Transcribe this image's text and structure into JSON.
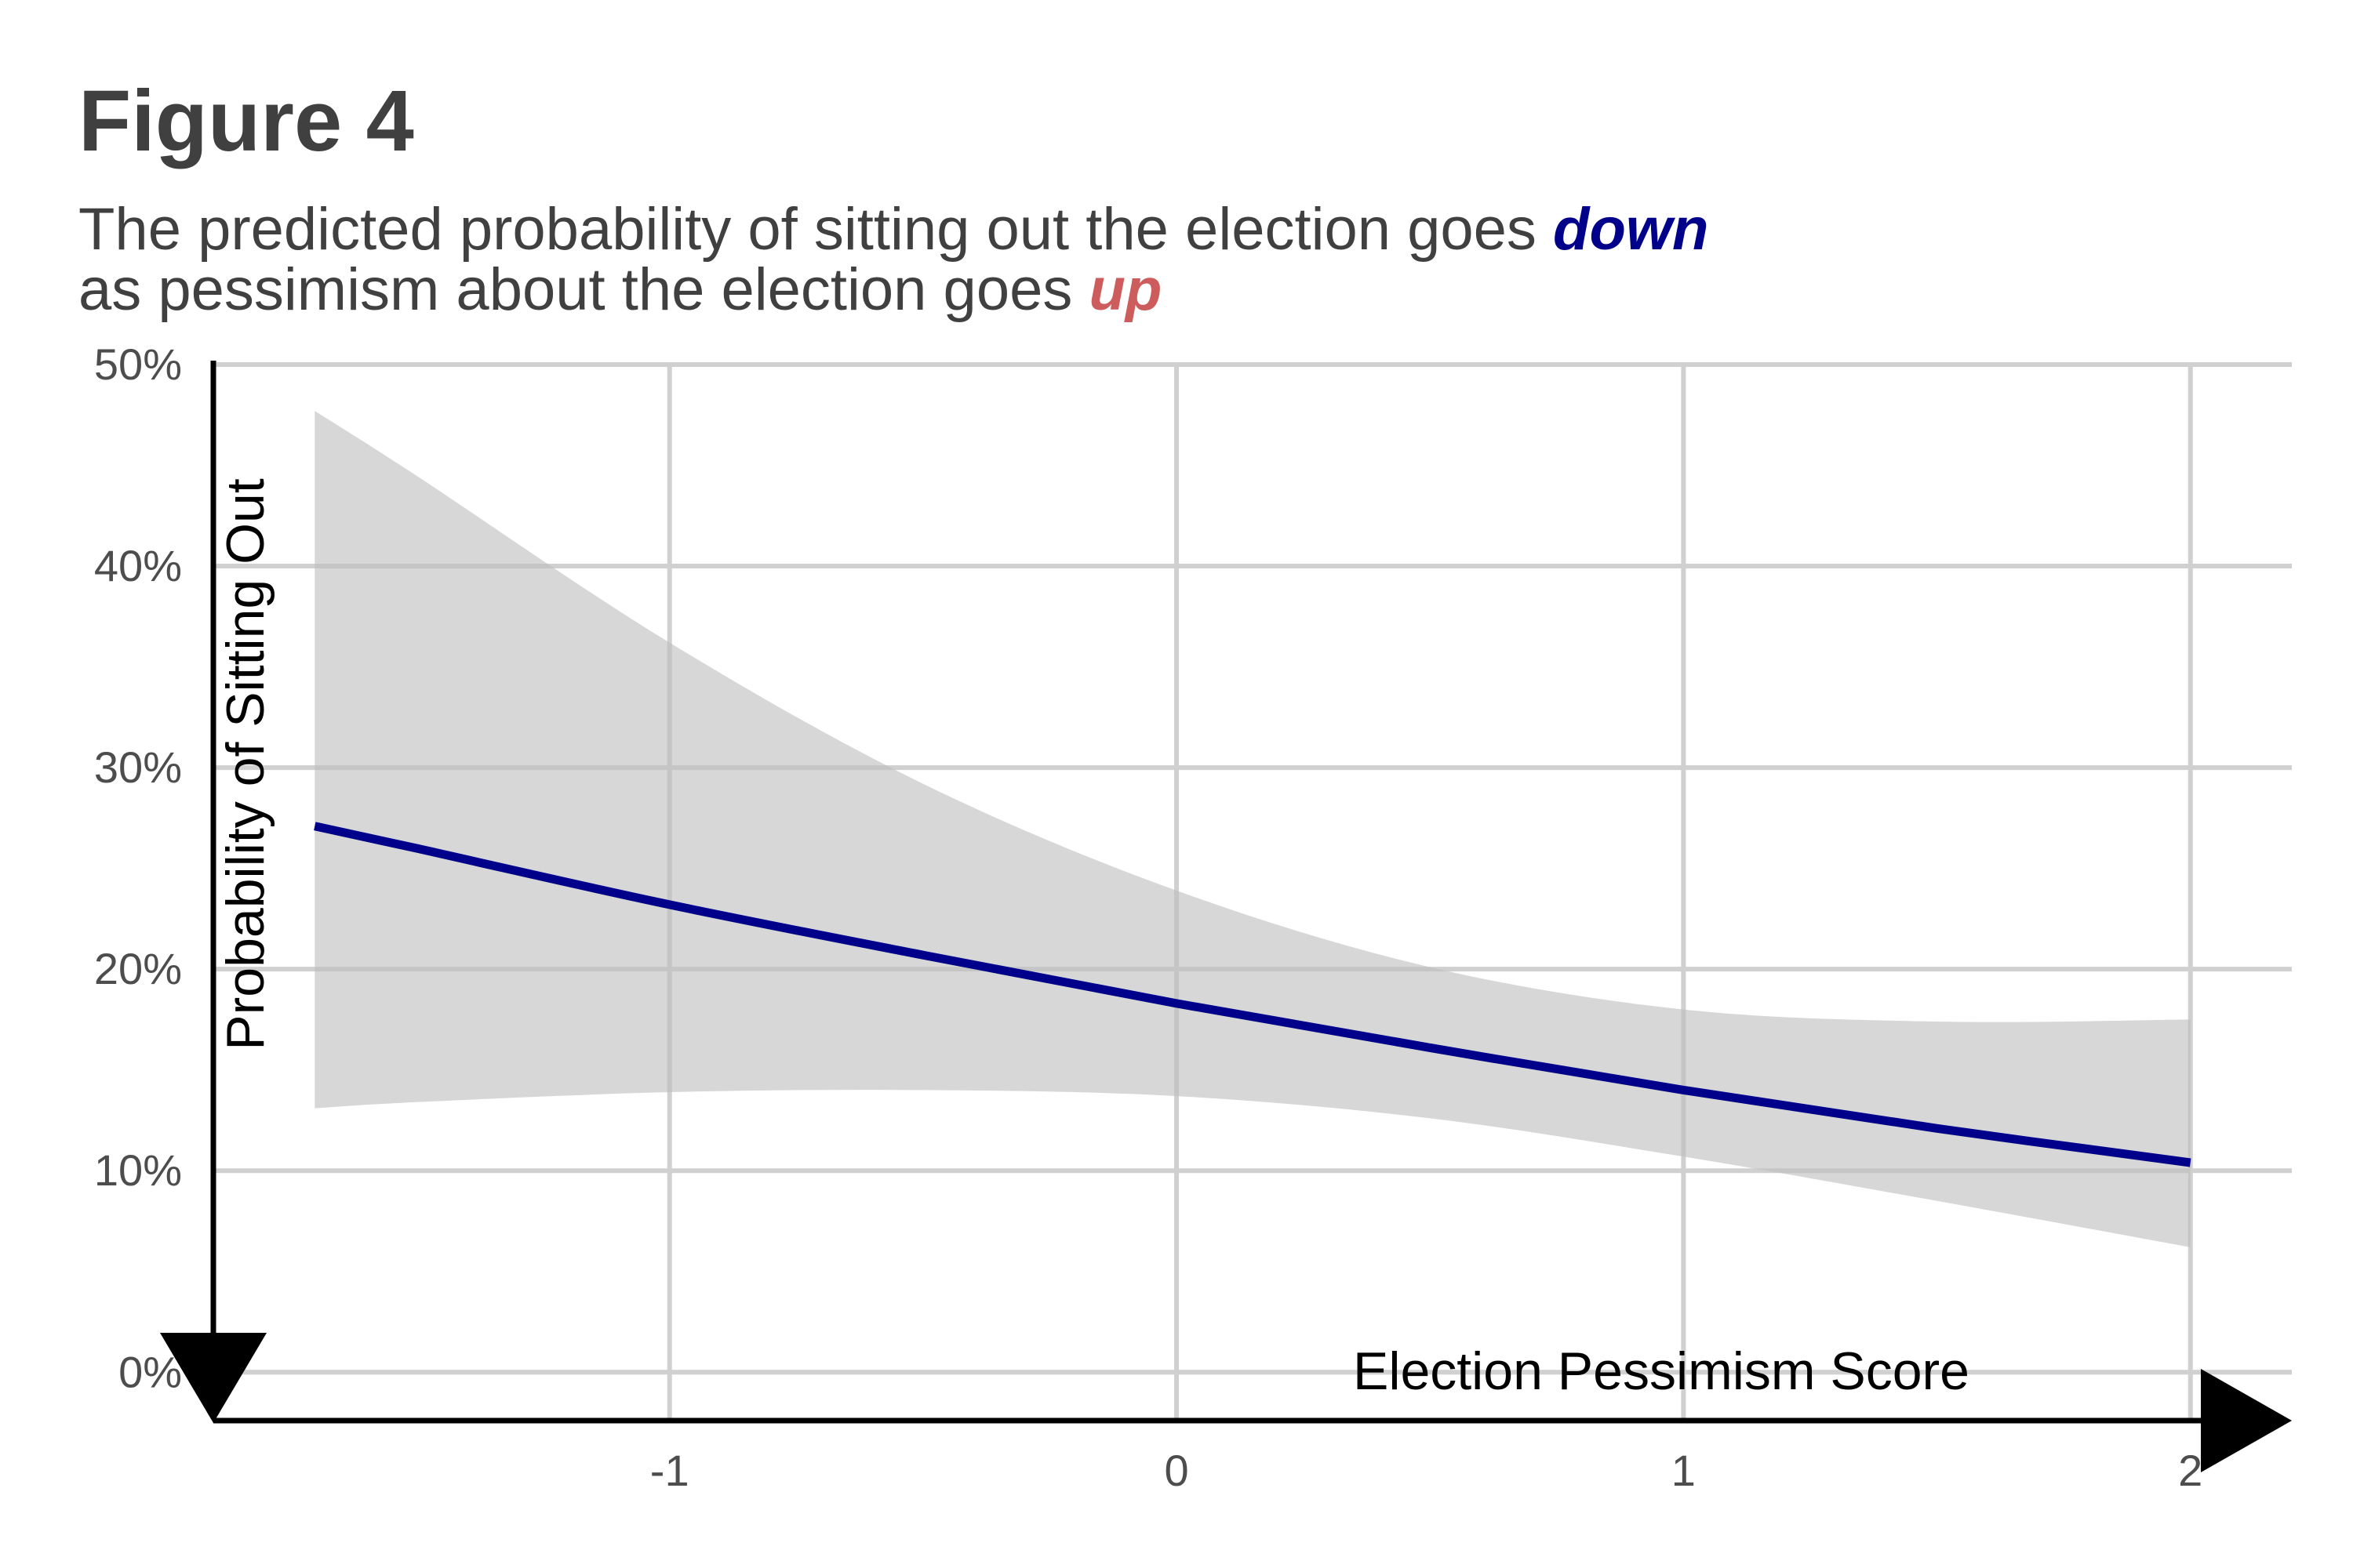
{
  "figure": {
    "title": "Figure 4",
    "subtitle_line1_text": "The predicted probability of sitting out the election goes ",
    "subtitle_line1_emph": "down",
    "subtitle_line2_text": "as pessimism about the election goes ",
    "subtitle_line2_emph": "up"
  },
  "colors": {
    "title": "#404040",
    "emph_down": "#00008b",
    "emph_up": "#cd5c5c",
    "line": "#00008b",
    "ribbon": "#bebebe",
    "grid": "#d0d0d0",
    "axis": "#000000"
  },
  "chart_data": {
    "type": "line",
    "title": "Figure 4",
    "subtitle": "The predicted probability of sitting out the election goes down as pessimism about the election goes up",
    "xlabel": "Election Pessimism Score",
    "ylabel": "Probability of Sitting Out",
    "xlim": [
      -1.9,
      2.2
    ],
    "ylim": [
      -2.4,
      50
    ],
    "x_ticks": [
      -1,
      0,
      1,
      2
    ],
    "x_tick_labels": [
      "-1",
      "0",
      "1",
      "2"
    ],
    "y_ticks": [
      0,
      10,
      20,
      30,
      40,
      50
    ],
    "y_tick_labels": [
      "0%",
      "10%",
      "20%",
      "30%",
      "40%",
      "50%"
    ],
    "grid": true,
    "series": [
      {
        "x": [
          -1.7,
          -1.5,
          -1.0,
          -0.5,
          0.0,
          0.5,
          1.0,
          1.5,
          2.0
        ],
        "y": [
          27.1,
          26.0,
          23.2,
          20.7,
          18.3,
          16.1,
          14.0,
          12.1,
          10.4
        ],
        "ci_lower": [
          13.1,
          13.4,
          13.9,
          14.0,
          13.7,
          12.6,
          10.7,
          8.5,
          6.2
        ],
        "ci_upper": [
          47.7,
          44.5,
          36.2,
          29.2,
          23.9,
          20.1,
          18.0,
          17.4,
          17.5
        ]
      }
    ]
  }
}
